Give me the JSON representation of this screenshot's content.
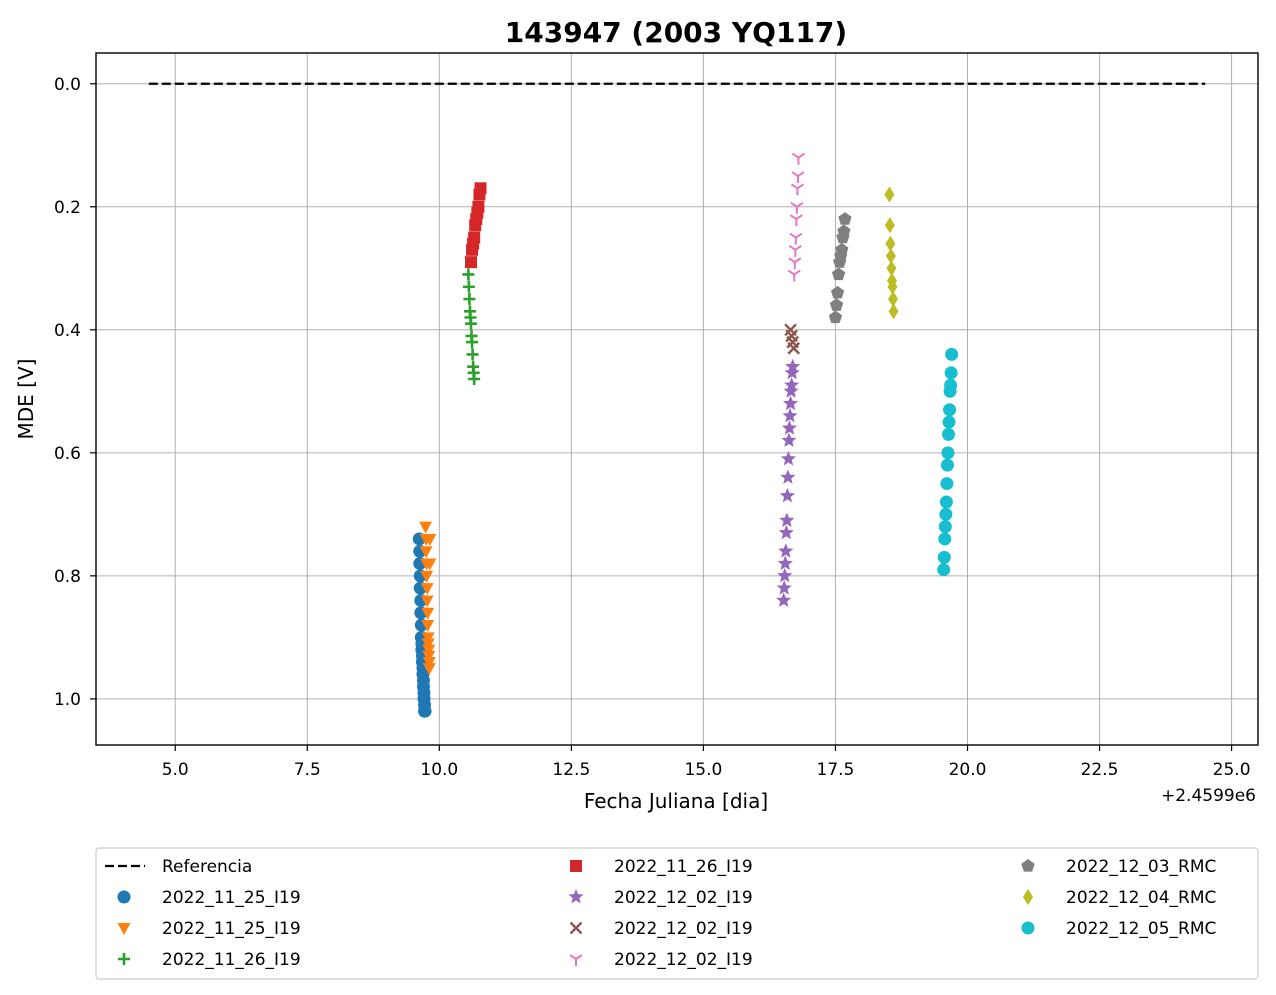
{
  "chart_data": {
    "type": "scatter",
    "title": "143947 (2003 YQ117)",
    "xlabel": "Fecha Juliana [dia]",
    "ylabel": "MDE [V]",
    "x_offset_label": "+2.4599e6",
    "xlim": [
      3.5,
      25.5
    ],
    "ylim": [
      1.075,
      -0.05
    ],
    "y_inverted": true,
    "xticks": [
      5.0,
      7.5,
      10.0,
      12.5,
      15.0,
      17.5,
      20.0,
      22.5,
      25.0
    ],
    "xtick_labels": [
      "5.0",
      "7.5",
      "10.0",
      "12.5",
      "15.0",
      "17.5",
      "20.0",
      "22.5",
      "25.0"
    ],
    "yticks": [
      0.0,
      0.2,
      0.4,
      0.6,
      0.8,
      1.0
    ],
    "ytick_labels": [
      "0.0",
      "0.2",
      "0.4",
      "0.6",
      "0.8",
      "1.0"
    ],
    "grid": true,
    "legend_position": "below plot, 3 columns",
    "reference": {
      "name": "Referencia",
      "x": [
        4.5,
        24.5
      ],
      "y": [
        0.0,
        0.0
      ],
      "color": "#000000",
      "style": "dashed"
    },
    "series": [
      {
        "name": "2022_11_25_I19",
        "marker": "circle",
        "color": "#1f77b4",
        "x": [
          9.62,
          9.63,
          9.63,
          9.64,
          9.64,
          9.65,
          9.65,
          9.66,
          9.66,
          9.67,
          9.67,
          9.68,
          9.68,
          9.69,
          9.69,
          9.7,
          9.7,
          9.71,
          9.71,
          9.72,
          9.72,
          9.73
        ],
        "y": [
          0.74,
          0.76,
          0.78,
          0.8,
          0.82,
          0.84,
          0.86,
          0.88,
          0.9,
          0.91,
          0.92,
          0.93,
          0.94,
          0.95,
          0.96,
          0.97,
          0.98,
          0.99,
          1.0,
          1.01,
          1.02,
          1.02
        ]
      },
      {
        "name": "2022_11_25_I19",
        "marker": "triangle-down",
        "color": "#ff7f0e",
        "x": [
          9.74,
          9.75,
          9.75,
          9.76,
          9.76,
          9.77,
          9.77,
          9.78,
          9.78,
          9.79,
          9.79,
          9.8,
          9.8,
          9.81,
          9.81,
          9.82,
          9.82
        ],
        "y": [
          0.72,
          0.74,
          0.76,
          0.78,
          0.8,
          0.82,
          0.84,
          0.86,
          0.88,
          0.9,
          0.91,
          0.92,
          0.93,
          0.94,
          0.95,
          0.74,
          0.78
        ]
      },
      {
        "name": "2022_11_26_I19",
        "marker": "plus",
        "color": "#2ca02c",
        "x": [
          10.55,
          10.56,
          10.57,
          10.58,
          10.59,
          10.6,
          10.61,
          10.62,
          10.63,
          10.64,
          10.65,
          10.66
        ],
        "y": [
          0.31,
          0.33,
          0.35,
          0.37,
          0.38,
          0.39,
          0.41,
          0.42,
          0.44,
          0.46,
          0.47,
          0.48
        ]
      },
      {
        "name": "2022_11_26_I19",
        "marker": "square",
        "color": "#d62728",
        "x": [
          10.6,
          10.62,
          10.64,
          10.66,
          10.68,
          10.7,
          10.72,
          10.74,
          10.76,
          10.78
        ],
        "y": [
          0.29,
          0.27,
          0.26,
          0.25,
          0.23,
          0.22,
          0.21,
          0.2,
          0.18,
          0.17
        ]
      },
      {
        "name": "2022_12_02_I19",
        "marker": "star",
        "color": "#9467bd",
        "x": [
          16.52,
          16.53,
          16.54,
          16.55,
          16.56,
          16.57,
          16.58,
          16.59,
          16.6,
          16.61,
          16.62,
          16.63,
          16.64,
          16.65,
          16.66,
          16.67,
          16.68,
          16.69
        ],
        "y": [
          0.84,
          0.82,
          0.8,
          0.78,
          0.76,
          0.73,
          0.71,
          0.67,
          0.64,
          0.61,
          0.58,
          0.56,
          0.54,
          0.52,
          0.5,
          0.49,
          0.47,
          0.46
        ]
      },
      {
        "name": "2022_12_02_I19",
        "marker": "x",
        "color": "#8c564b",
        "x": [
          16.65,
          16.67,
          16.69,
          16.71
        ],
        "y": [
          0.4,
          0.41,
          0.42,
          0.43
        ]
      },
      {
        "name": "2022_12_02_I19",
        "marker": "tri-down",
        "color": "#e377c2",
        "x": [
          16.72,
          16.73,
          16.74,
          16.75,
          16.76,
          16.77,
          16.78,
          16.79,
          16.8
        ],
        "y": [
          0.31,
          0.29,
          0.27,
          0.25,
          0.22,
          0.2,
          0.17,
          0.15,
          0.12
        ]
      },
      {
        "name": "2022_12_03_RMC",
        "marker": "pentagon",
        "color": "#7f7f7f",
        "x": [
          17.5,
          17.52,
          17.54,
          17.56,
          17.58,
          17.6,
          17.62,
          17.64,
          17.66,
          17.68
        ],
        "y": [
          0.38,
          0.36,
          0.34,
          0.31,
          0.29,
          0.28,
          0.27,
          0.25,
          0.24,
          0.22
        ]
      },
      {
        "name": "2022_12_04_RMC",
        "marker": "diamond",
        "color": "#bcbd22",
        "x": [
          18.52,
          18.53,
          18.54,
          18.55,
          18.56,
          18.57,
          18.58,
          18.59,
          18.6
        ],
        "y": [
          0.18,
          0.23,
          0.26,
          0.28,
          0.3,
          0.32,
          0.33,
          0.35,
          0.37
        ]
      },
      {
        "name": "2022_12_05_RMC",
        "marker": "circle",
        "color": "#17becf",
        "x": [
          19.55,
          19.56,
          19.57,
          19.58,
          19.59,
          19.6,
          19.61,
          19.62,
          19.63,
          19.64,
          19.65,
          19.66,
          19.67,
          19.68,
          19.69,
          19.7
        ],
        "y": [
          0.79,
          0.77,
          0.74,
          0.72,
          0.7,
          0.68,
          0.65,
          0.62,
          0.6,
          0.57,
          0.55,
          0.53,
          0.5,
          0.49,
          0.47,
          0.44
        ]
      }
    ]
  }
}
